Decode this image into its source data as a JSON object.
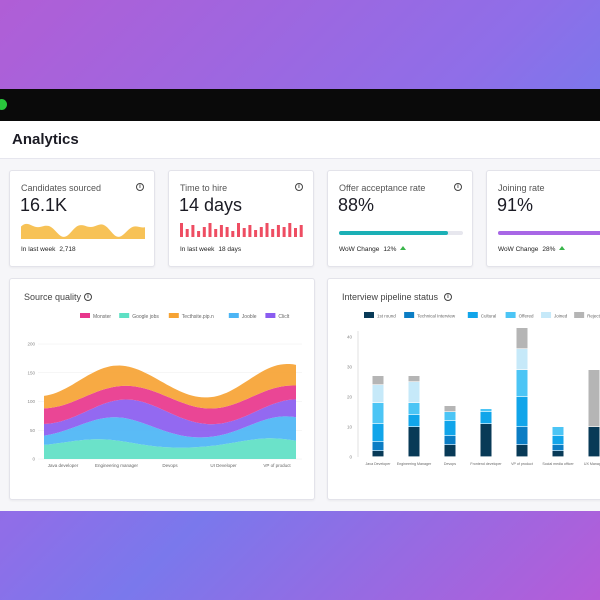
{
  "app": {
    "title": "Analytics"
  },
  "kpis": [
    {
      "label": "Candidates sourced",
      "value": "16.1K",
      "foot_label": "In last week",
      "foot_value": "2,718",
      "spark_color": "#f6bb45"
    },
    {
      "label": "Time to hire",
      "value": "14 days",
      "foot_label": "In last week",
      "foot_value": "18 days",
      "spark_color": "#ee4d62"
    },
    {
      "label": "Offer acceptance rate",
      "value": "88%",
      "foot_label": "WoW Change",
      "foot_value": "12%",
      "progress": 0.88,
      "bar_color": "#1bb0b6"
    },
    {
      "label": "Joining rate",
      "value": "91%",
      "foot_label": "WoW Change",
      "foot_value": "28%",
      "progress": 0.91,
      "bar_color": "#a867e6"
    }
  ],
  "source_quality": {
    "title": "Source quality",
    "legend": [
      {
        "label": "Monster",
        "color": "#e8368c"
      },
      {
        "label": "Google jobs",
        "color": "#5ee0c4"
      },
      {
        "label": "Tecthsite.pip.n",
        "color": "#f6a334"
      },
      {
        "label": "Jooble",
        "color": "#4cb5f5"
      },
      {
        "label": "Cliclt",
        "color": "#8a5cf0"
      }
    ],
    "y_ticks": [
      "0",
      "50",
      "100",
      "150",
      "200"
    ],
    "x_labels": [
      "Java developer",
      "Engineering manager",
      "Devops",
      "UI Developer",
      "VP of product"
    ]
  },
  "pipeline": {
    "title": "Interview pipeline status",
    "legend": [
      {
        "label": "1st round",
        "color": "#083a57"
      },
      {
        "label": "Technical Interview",
        "color": "#0b7dc4"
      },
      {
        "label": "Cultural",
        "color": "#11a5ea"
      },
      {
        "label": "Offered",
        "color": "#4cc5f5"
      },
      {
        "label": "Joined",
        "color": "#c6e9f9"
      },
      {
        "label": "Rejected",
        "color": "#b5b5b5"
      }
    ],
    "y_ticks": [
      "0",
      "10",
      "20",
      "30",
      "40"
    ],
    "x_labels": [
      "Java Developer",
      "Engineering Manager",
      "Devops",
      "Frontend developer",
      "VP of product",
      "Social media officer",
      "UX Manager"
    ]
  },
  "chart_data": {
    "type": "bar",
    "title": "Interview pipeline status",
    "ylim": [
      0,
      40
    ],
    "categories": [
      "Java Developer",
      "Engineering Manager",
      "Devops",
      "Frontend developer",
      "VP of product",
      "Social media officer",
      "UX Manager"
    ],
    "series": [
      {
        "name": "1st round",
        "values": [
          2,
          10,
          4,
          11,
          4,
          2,
          10
        ]
      },
      {
        "name": "Technical Interview",
        "values": [
          3,
          0,
          3,
          0,
          6,
          2,
          0
        ]
      },
      {
        "name": "Cultural",
        "values": [
          6,
          4,
          5,
          4,
          10,
          3,
          0
        ]
      },
      {
        "name": "Offered",
        "values": [
          7,
          4,
          3,
          1,
          9,
          3,
          0
        ]
      },
      {
        "name": "Joined",
        "values": [
          6,
          7,
          0,
          0,
          7,
          0,
          0
        ]
      },
      {
        "name": "Rejected",
        "values": [
          3,
          2,
          2,
          0,
          7,
          0,
          19
        ]
      }
    ]
  }
}
